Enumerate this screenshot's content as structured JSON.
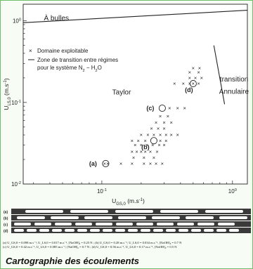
{
  "chart_data": {
    "type": "scatter",
    "title": "",
    "xlabel": "U",
    "xlabel_sub": "GS,0",
    "xlabel_unit": " (m.s",
    "xlabel_exp": "-1",
    "xlabel_close": ")",
    "ylabel": "U",
    "ylabel_sub": "LS,0",
    "ylabel_unit": " (m.s",
    "ylabel_exp": "-1",
    "ylabel_close": ")",
    "xscale": "log",
    "yscale": "log",
    "xlim": [
      0.025,
      1.3
    ],
    "ylim": [
      0.01,
      1.6
    ],
    "xticks": [
      {
        "value": 0.1,
        "base": "10",
        "exp": "-1"
      },
      {
        "value": 1,
        "base": "10",
        "exp": "0"
      }
    ],
    "yticks": [
      {
        "value": 0.01,
        "base": "10",
        "exp": "-2"
      },
      {
        "value": 0.1,
        "base": "10",
        "exp": "-1"
      },
      {
        "value": 1,
        "base": "10",
        "exp": "0"
      }
    ],
    "grid": false,
    "legend_position": "top-left",
    "legend": {
      "points_label": "Domaine exploitable",
      "line_label_1": "Zone de transition entre régimes",
      "line_label_2": "pour le système N",
      "line_label_sub1": "2",
      "line_label_mid": " − H",
      "line_label_sub2": "2",
      "line_label_end": "O"
    },
    "region_labels": {
      "bubbles": "À bulles",
      "taylor": "Taylor",
      "annular_1": "transition",
      "annular_2": "Annulaire"
    },
    "annotations": [
      {
        "label": "(a)",
        "x": 0.107,
        "y": 0.0178
      },
      {
        "label": "(b)",
        "x": 0.25,
        "y": 0.034
      },
      {
        "label": "(c)",
        "x": 0.29,
        "y": 0.085
      },
      {
        "label": "(d)",
        "x": 0.5,
        "y": 0.17
      }
    ],
    "transition_lines": [
      {
        "points": [
          [
            0.025,
            0.95
          ],
          [
            1.3,
            1.35
          ]
        ]
      },
      {
        "points": [
          [
            0.72,
            0.5
          ],
          [
            0.87,
            0.095
          ]
        ]
      }
    ],
    "series": [
      {
        "points": [
          [
            0.105,
            0.0178
          ],
          [
            0.111,
            0.0178
          ],
          [
            0.14,
            0.0178
          ],
          [
            0.17,
            0.0178
          ],
          [
            0.21,
            0.0178
          ],
          [
            0.235,
            0.0178
          ],
          [
            0.26,
            0.0178
          ],
          [
            0.29,
            0.0178
          ],
          [
            0.175,
            0.021
          ],
          [
            0.21,
            0.021
          ],
          [
            0.25,
            0.021
          ],
          [
            0.17,
            0.025
          ],
          [
            0.185,
            0.025
          ],
          [
            0.2,
            0.025
          ],
          [
            0.215,
            0.025
          ],
          [
            0.235,
            0.025
          ],
          [
            0.265,
            0.025
          ],
          [
            0.18,
            0.03
          ],
          [
            0.2,
            0.03
          ],
          [
            0.22,
            0.03
          ],
          [
            0.245,
            0.03
          ],
          [
            0.275,
            0.03
          ],
          [
            0.3,
            0.03
          ],
          [
            0.17,
            0.034
          ],
          [
            0.19,
            0.034
          ],
          [
            0.215,
            0.034
          ],
          [
            0.28,
            0.034
          ],
          [
            0.31,
            0.034
          ],
          [
            0.2,
            0.04
          ],
          [
            0.225,
            0.04
          ],
          [
            0.25,
            0.04
          ],
          [
            0.28,
            0.04
          ],
          [
            0.31,
            0.04
          ],
          [
            0.34,
            0.04
          ],
          [
            0.38,
            0.04
          ],
          [
            0.24,
            0.048
          ],
          [
            0.27,
            0.048
          ],
          [
            0.3,
            0.048
          ],
          [
            0.26,
            0.057
          ],
          [
            0.3,
            0.057
          ],
          [
            0.34,
            0.057
          ],
          [
            0.28,
            0.068
          ],
          [
            0.32,
            0.068
          ],
          [
            0.33,
            0.085
          ],
          [
            0.38,
            0.085
          ],
          [
            0.43,
            0.085
          ],
          [
            0.36,
            0.17
          ],
          [
            0.42,
            0.17
          ],
          [
            0.47,
            0.17
          ],
          [
            0.5,
            0.17
          ],
          [
            0.55,
            0.17
          ],
          [
            0.47,
            0.2
          ],
          [
            0.52,
            0.2
          ],
          [
            0.58,
            0.2
          ],
          [
            0.47,
            0.235
          ],
          [
            0.55,
            0.235
          ],
          [
            0.5,
            0.265
          ],
          [
            0.56,
            0.265
          ]
        ]
      }
    ],
    "highlighted_points": [
      [
        0.107,
        0.0178
      ],
      [
        0.25,
        0.034
      ],
      [
        0.29,
        0.085
      ],
      [
        0.5,
        0.17
      ]
    ]
  },
  "pattern_labels": [
    "(a)",
    "(b)",
    "(c)",
    "(d)"
  ],
  "caption": {
    "line_1": "(a) U_GS,0 = 0.098 m.s⁻¹, U_LS,0 = 0.017 m.s⁻¹, [NaOH]₀ = 0.25 N ; (b) U_GS,0 = 0.28 m.s⁻¹, U_LS,0 = 0.034 m.s⁻¹, [NaOH]₀ = 0.7 N",
    "line_2": "(c) U_GS,0 = 0.42 m.s⁻¹, U_LS,0 = 0.085 m.s⁻¹, [NaOH]₀ = 0.7 N ; (d) U_GS,0 = 0.56 m.s⁻¹, U_LS,0 = 0.17 m.s⁻¹, [NaOH]₀ = 0.5 N"
  },
  "figure_title": "Cartographie des écoulements",
  "colors": {
    "background": "#f7fcf4",
    "border": "#6fbf6a",
    "axis": "#222222",
    "marker": "#222222",
    "channel_wall": "#3a3a3a",
    "bubble": "#ffffff"
  }
}
